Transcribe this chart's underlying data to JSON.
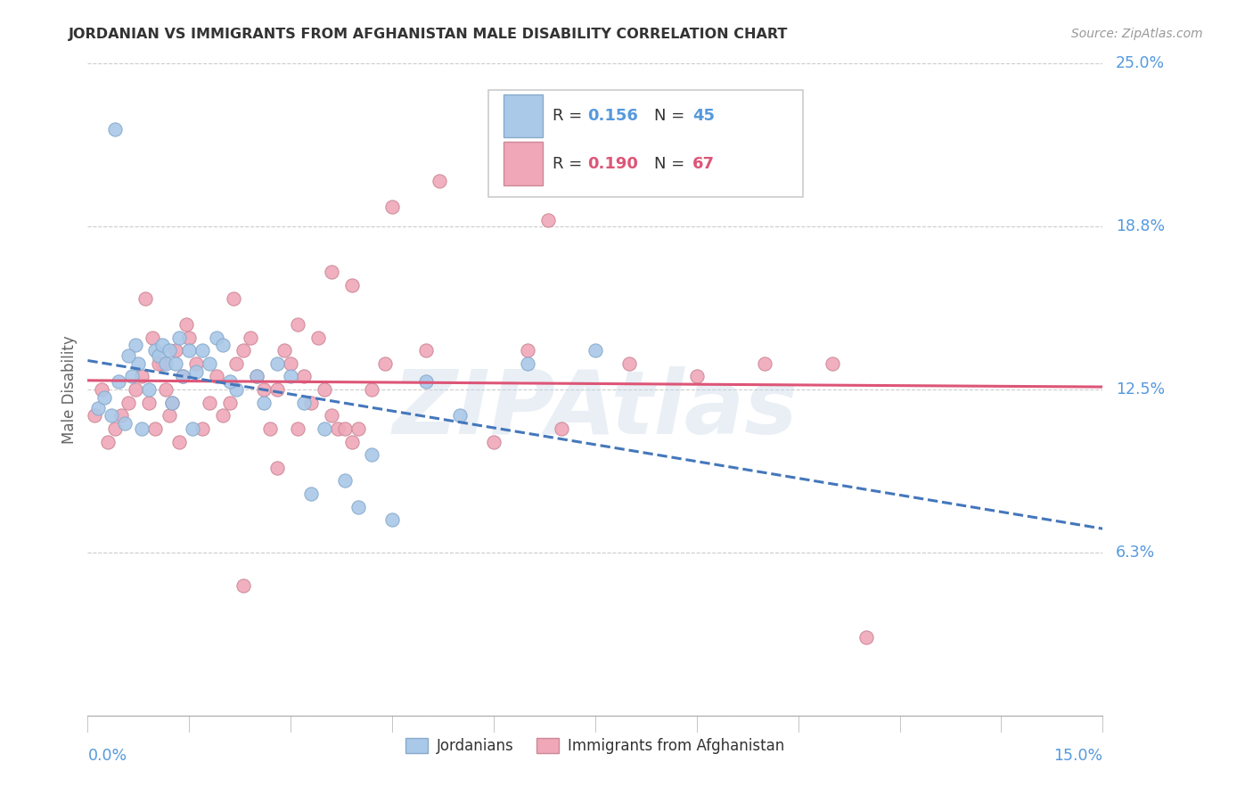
{
  "title": "JORDANIAN VS IMMIGRANTS FROM AFGHANISTAN MALE DISABILITY CORRELATION CHART",
  "source": "Source: ZipAtlas.com",
  "ylabel": "Male Disability",
  "xlim": [
    0.0,
    15.0
  ],
  "ylim": [
    0.0,
    25.0
  ],
  "yticks": [
    0.0,
    6.25,
    12.5,
    18.75,
    25.0
  ],
  "ytick_labels": [
    "",
    "6.3%",
    "12.5%",
    "18.8%",
    "25.0%"
  ],
  "background_color": "#ffffff",
  "grid_color": "#cccccc",
  "watermark": "ZIPAtlas",
  "legend_r1": "0.156",
  "legend_n1": "45",
  "legend_r2": "0.190",
  "legend_n2": "67",
  "jordanians_color": "#aac8e8",
  "afghanistan_color": "#f0a8b8",
  "jordanians_edge": "#88aacc",
  "afghanistan_edge": "#cc8898",
  "jordanians_line_color": "#4477bb",
  "afghanistan_line_color": "#dd5577",
  "label_color": "#5599dd",
  "r2_color": "#dd5577",
  "legend_label1": "Jordanians",
  "legend_label2": "Immigrants from Afghanistan",
  "jx": [
    0.15,
    0.25,
    0.35,
    0.45,
    0.55,
    0.65,
    0.7,
    0.75,
    0.8,
    0.9,
    1.0,
    1.05,
    1.1,
    1.15,
    1.2,
    1.25,
    1.3,
    1.35,
    1.4,
    1.5,
    1.6,
    1.7,
    1.8,
    1.9,
    2.0,
    2.2,
    2.5,
    2.6,
    2.8,
    3.0,
    3.2,
    3.5,
    4.0,
    4.5,
    5.0,
    5.5,
    6.5,
    7.5,
    4.2,
    3.8,
    3.3,
    2.1,
    1.55,
    0.6,
    0.4
  ],
  "jy": [
    11.8,
    12.2,
    11.5,
    12.8,
    11.2,
    13.0,
    14.2,
    13.5,
    11.0,
    12.5,
    14.0,
    13.8,
    14.2,
    13.5,
    14.0,
    12.0,
    13.5,
    14.5,
    13.0,
    14.0,
    13.2,
    14.0,
    13.5,
    14.5,
    14.2,
    12.5,
    13.0,
    12.0,
    13.5,
    13.0,
    12.0,
    11.0,
    8.0,
    7.5,
    12.8,
    11.5,
    13.5,
    14.0,
    10.0,
    9.0,
    8.5,
    12.8,
    11.0,
    13.8,
    22.5
  ],
  "ax": [
    0.1,
    0.2,
    0.3,
    0.4,
    0.5,
    0.6,
    0.7,
    0.8,
    0.9,
    1.0,
    1.1,
    1.15,
    1.2,
    1.3,
    1.4,
    1.5,
    1.6,
    1.7,
    1.8,
    1.9,
    2.0,
    2.1,
    2.2,
    2.3,
    2.4,
    2.5,
    2.6,
    2.7,
    2.8,
    2.9,
    3.0,
    3.1,
    3.2,
    3.3,
    3.4,
    3.5,
    3.6,
    3.7,
    3.8,
    3.9,
    4.0,
    4.2,
    4.4,
    5.0,
    6.0,
    6.5,
    7.0,
    8.0,
    9.0,
    10.0,
    11.0,
    11.5,
    3.9,
    2.15,
    1.45,
    0.85,
    0.95,
    1.05,
    1.25,
    1.35,
    4.5,
    5.2,
    6.8,
    3.6,
    2.3,
    2.8,
    3.1
  ],
  "ay": [
    11.5,
    12.5,
    10.5,
    11.0,
    11.5,
    12.0,
    12.5,
    13.0,
    12.0,
    11.0,
    13.5,
    12.5,
    11.5,
    14.0,
    13.0,
    14.5,
    13.5,
    11.0,
    12.0,
    13.0,
    11.5,
    12.0,
    13.5,
    14.0,
    14.5,
    13.0,
    12.5,
    11.0,
    12.5,
    14.0,
    13.5,
    15.0,
    13.0,
    12.0,
    14.5,
    12.5,
    11.5,
    11.0,
    11.0,
    10.5,
    11.0,
    12.5,
    13.5,
    14.0,
    10.5,
    14.0,
    11.0,
    13.5,
    13.0,
    13.5,
    13.5,
    3.0,
    16.5,
    16.0,
    15.0,
    16.0,
    14.5,
    13.5,
    12.0,
    10.5,
    19.5,
    20.5,
    19.0,
    17.0,
    5.0,
    9.5,
    11.0
  ]
}
